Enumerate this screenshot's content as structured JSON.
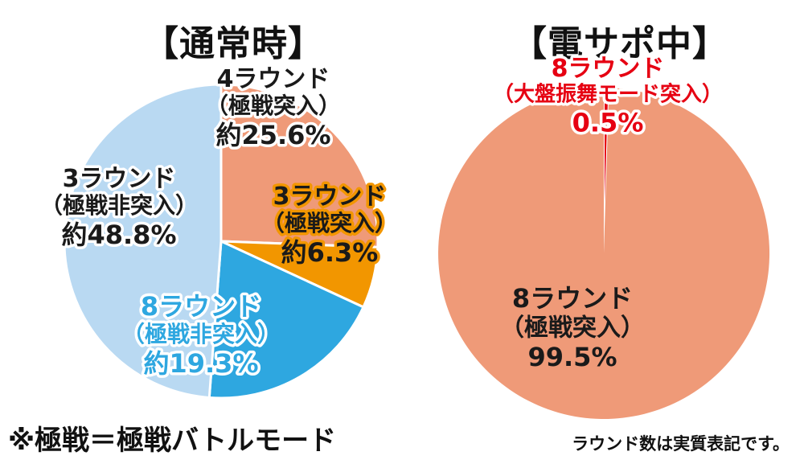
{
  "colors": {
    "salmon": "#ef9a78",
    "orange": "#f29600",
    "light_blue": "#b9d9f2",
    "blue": "#2ea7e0",
    "red": "#e60012",
    "dark": "#1a1a1a"
  },
  "chart_data": [
    {
      "type": "pie",
      "title": "【通常時】",
      "slices": [
        {
          "lines": [
            "4ラウンド",
            "（極戦突入）",
            "約25.6%"
          ],
          "value": 25.6,
          "color": "salmon",
          "text_color": "dark",
          "outline": "white"
        },
        {
          "lines": [
            "3ラウンド",
            "（極戦突入）",
            "約6.3%"
          ],
          "value": 6.3,
          "color": "orange",
          "text_color": "dark",
          "outline": "orange"
        },
        {
          "lines": [
            "8ラウンド",
            "（極戦非突入）",
            "約19.3%"
          ],
          "value": 19.3,
          "color": "blue",
          "text_color": "blue",
          "outline": "white"
        },
        {
          "lines": [
            "3ラウンド",
            "（極戦非突入）",
            "約48.8%"
          ],
          "value": 48.8,
          "color": "light_blue",
          "text_color": "dark",
          "outline": "white"
        }
      ]
    },
    {
      "type": "pie",
      "title": "【電サポ中】",
      "slices": [
        {
          "lines": [
            "8ラウンド",
            "（大盤振舞モード突入）",
            "0.5%"
          ],
          "value": 0.5,
          "color": "red",
          "text_color": "red",
          "outline": "white"
        },
        {
          "lines": [
            "8ラウンド",
            "（極戦突入）",
            "99.5%"
          ],
          "value": 99.5,
          "color": "salmon",
          "text_color": "dark",
          "outline": "none"
        }
      ]
    }
  ],
  "notes": {
    "definition": "※極戦＝極戦バトルモード",
    "round_note": "ラウンド数は実質表記です。"
  }
}
